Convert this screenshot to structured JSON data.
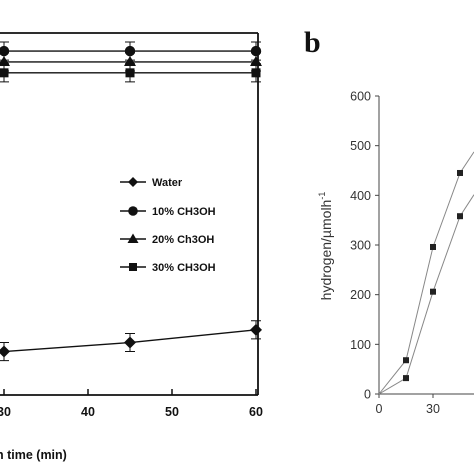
{
  "chart_data": [
    {
      "type": "line",
      "panel_label": "",
      "xlabel": "n time (min)",
      "x_ticks": [
        30,
        40,
        50,
        60
      ],
      "xlim": [
        30,
        60
      ],
      "ylim": [
        0,
        100
      ],
      "legend_position": "right",
      "series": [
        {
          "name": "Water",
          "marker": "diamond",
          "x": [
            30,
            45,
            60
          ],
          "y": [
            12,
            14.5,
            18
          ],
          "err": [
            2.5,
            2.5,
            2.5
          ]
        },
        {
          "name": "10% CH3OH",
          "marker": "circle",
          "x": [
            30,
            45,
            60
          ],
          "y": [
            95,
            95,
            95
          ],
          "err": [
            2.5,
            2.5,
            2.5
          ]
        },
        {
          "name": "20% Ch3OH",
          "marker": "triangle",
          "x": [
            30,
            45,
            60
          ],
          "y": [
            92,
            92,
            92
          ],
          "err": [
            2.5,
            2.5,
            2.5
          ]
        },
        {
          "name": "30% CH3OH",
          "marker": "square",
          "x": [
            30,
            45,
            60
          ],
          "y": [
            89,
            89,
            89
          ],
          "err": [
            2.5,
            2.5,
            2.5
          ]
        }
      ]
    },
    {
      "type": "line",
      "panel_label": "b",
      "ylabel": "hydrogen/µmolh",
      "ylabel_superscript": "-1",
      "x_ticks": [
        0,
        30
      ],
      "y_ticks": [
        0,
        100,
        200,
        300,
        400,
        500,
        600
      ],
      "ylim": [
        0,
        600
      ],
      "series": [
        {
          "x": [
            0,
            15,
            30,
            45
          ],
          "y": [
            0,
            68,
            296,
            445
          ]
        },
        {
          "x": [
            0,
            15,
            30,
            45
          ],
          "y": [
            0,
            32,
            206,
            358
          ]
        }
      ]
    }
  ]
}
